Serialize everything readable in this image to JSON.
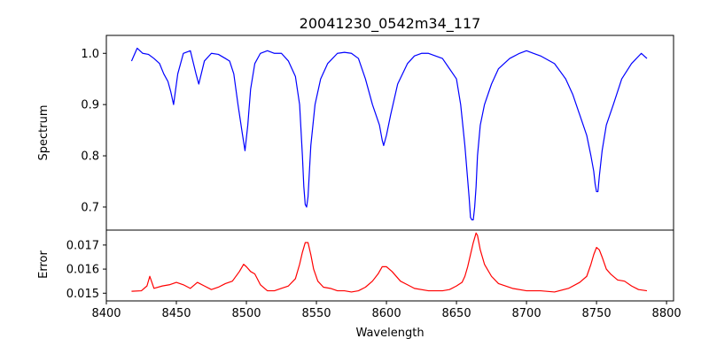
{
  "chart_data": [
    {
      "type": "line",
      "title": "20041230_0542m34_117",
      "ylabel": "Spectrum",
      "xlabel": "",
      "xlim": [
        8400,
        8805
      ],
      "ylim": [
        0.655,
        1.035
      ],
      "yticks": [
        0.7,
        0.8,
        0.9,
        1.0
      ],
      "ytick_labels": [
        "0.7",
        "0.8",
        "0.9",
        "1.0"
      ],
      "grid": false,
      "series": [
        {
          "color": "#0000ff",
          "x": [
            8418,
            8422,
            8426,
            8430,
            8434,
            8438,
            8441,
            8444,
            8446,
            8448,
            8451,
            8455,
            8460,
            8464,
            8466,
            8470,
            8475,
            8480,
            8485,
            8488,
            8491,
            8494,
            8497,
            8499,
            8501,
            8503,
            8506,
            8510,
            8515,
            8520,
            8525,
            8530,
            8535,
            8538,
            8540,
            8541,
            8542,
            8543,
            8544,
            8546,
            8549,
            8553,
            8558,
            8565,
            8570,
            8575,
            8580,
            8585,
            8590,
            8595,
            8597,
            8598,
            8600,
            8603,
            8608,
            8615,
            8620,
            8625,
            8630,
            8635,
            8640,
            8645,
            8650,
            8653,
            8656,
            8659,
            8660,
            8661,
            8662,
            8663,
            8664,
            8665,
            8667,
            8670,
            8675,
            8680,
            8688,
            8695,
            8700,
            8705,
            8710,
            8720,
            8728,
            8733,
            8738,
            8743,
            8746,
            8748,
            8749,
            8750,
            8751,
            8752,
            8754,
            8757,
            8762,
            8768,
            8775,
            8782,
            8786
          ],
          "values": [
            0.985,
            1.01,
            1.0,
            0.998,
            0.99,
            0.98,
            0.96,
            0.945,
            0.925,
            0.9,
            0.96,
            1.0,
            1.005,
            0.96,
            0.94,
            0.985,
            1.0,
            0.998,
            0.99,
            0.985,
            0.96,
            0.9,
            0.845,
            0.81,
            0.86,
            0.93,
            0.98,
            1.0,
            1.005,
            1.0,
            1.0,
            0.985,
            0.955,
            0.9,
            0.8,
            0.74,
            0.705,
            0.7,
            0.72,
            0.82,
            0.9,
            0.95,
            0.98,
            1.0,
            1.002,
            1.0,
            0.99,
            0.95,
            0.9,
            0.86,
            0.83,
            0.82,
            0.84,
            0.88,
            0.94,
            0.98,
            0.995,
            1.0,
            1.0,
            0.995,
            0.99,
            0.97,
            0.95,
            0.9,
            0.82,
            0.72,
            0.68,
            0.675,
            0.675,
            0.7,
            0.74,
            0.8,
            0.86,
            0.9,
            0.94,
            0.97,
            0.99,
            1.0,
            1.005,
            1.0,
            0.995,
            0.98,
            0.95,
            0.92,
            0.88,
            0.84,
            0.8,
            0.77,
            0.745,
            0.73,
            0.73,
            0.76,
            0.81,
            0.86,
            0.9,
            0.95,
            0.98,
            1.0,
            0.99
          ]
        }
      ]
    },
    {
      "type": "line",
      "title": "",
      "xlabel": "Wavelength",
      "ylabel": "Error",
      "xlim": [
        8400,
        8805
      ],
      "ylim": [
        0.01468,
        0.01762
      ],
      "xticks": [
        8400,
        8450,
        8500,
        8550,
        8600,
        8650,
        8700,
        8750,
        8800
      ],
      "xtick_labels": [
        "8400",
        "8450",
        "8500",
        "8550",
        "8600",
        "8650",
        "8700",
        "8750",
        "8800"
      ],
      "yticks": [
        0.015,
        0.016,
        0.017
      ],
      "ytick_labels": [
        "0.015",
        "0.016",
        "0.017"
      ],
      "grid": false,
      "series": [
        {
          "color": "#ff0000",
          "x": [
            8418,
            8425,
            8429,
            8431,
            8434,
            8440,
            8445,
            8450,
            8455,
            8460,
            8465,
            8470,
            8475,
            8480,
            8485,
            8490,
            8495,
            8498,
            8500,
            8503,
            8506,
            8510,
            8515,
            8520,
            8525,
            8530,
            8535,
            8538,
            8540,
            8542,
            8544,
            8546,
            8548,
            8551,
            8555,
            8560,
            8565,
            8570,
            8575,
            8580,
            8585,
            8590,
            8594,
            8597,
            8600,
            8604,
            8610,
            8615,
            8620,
            8630,
            8640,
            8645,
            8650,
            8654,
            8656,
            8658,
            8660,
            8662,
            8664,
            8665,
            8667,
            8670,
            8675,
            8680,
            8690,
            8700,
            8710,
            8720,
            8730,
            8738,
            8743,
            8746,
            8748,
            8750,
            8752,
            8754,
            8757,
            8760,
            8765,
            8770,
            8775,
            8780,
            8786
          ],
          "values": [
            0.01508,
            0.0151,
            0.0153,
            0.0157,
            0.0152,
            0.0153,
            0.01535,
            0.01545,
            0.01535,
            0.0152,
            0.01545,
            0.0153,
            0.01515,
            0.01525,
            0.0154,
            0.0155,
            0.0159,
            0.0162,
            0.0161,
            0.0159,
            0.0158,
            0.01535,
            0.0151,
            0.0151,
            0.0152,
            0.0153,
            0.0156,
            0.0162,
            0.0167,
            0.0171,
            0.0171,
            0.0166,
            0.016,
            0.0155,
            0.01525,
            0.0152,
            0.0151,
            0.0151,
            0.01505,
            0.0151,
            0.01525,
            0.0155,
            0.0158,
            0.0161,
            0.0161,
            0.0159,
            0.0155,
            0.01535,
            0.0152,
            0.0151,
            0.0151,
            0.01515,
            0.0153,
            0.01545,
            0.0157,
            0.0161,
            0.0166,
            0.0171,
            0.0175,
            0.0174,
            0.0168,
            0.0162,
            0.0157,
            0.0154,
            0.0152,
            0.0151,
            0.0151,
            0.01505,
            0.0152,
            0.01545,
            0.0157,
            0.0162,
            0.0166,
            0.0169,
            0.0168,
            0.0165,
            0.016,
            0.0158,
            0.01555,
            0.0155,
            0.0153,
            0.01515,
            0.0151
          ]
        }
      ]
    }
  ]
}
